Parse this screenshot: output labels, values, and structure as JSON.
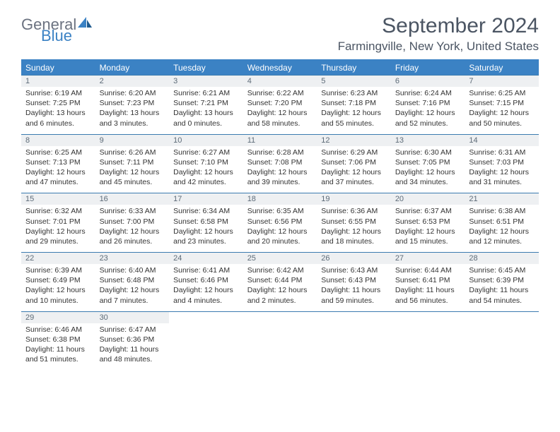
{
  "logo": {
    "word1": "General",
    "word2": "Blue"
  },
  "title": "September 2024",
  "location": "Farmingville, New York, United States",
  "colors": {
    "accent": "#3b82c4",
    "header_text": "#ffffff",
    "num_bg": "#eef0f2",
    "num_text": "#5d6b78",
    "body_text": "#333333",
    "title_text": "#4b5563",
    "logo_grey": "#6b7280"
  },
  "day_names": [
    "Sunday",
    "Monday",
    "Tuesday",
    "Wednesday",
    "Thursday",
    "Friday",
    "Saturday"
  ],
  "weeks": [
    [
      {
        "n": "1",
        "sr": "6:19 AM",
        "ss": "7:25 PM",
        "dl": "13 hours and 6 minutes."
      },
      {
        "n": "2",
        "sr": "6:20 AM",
        "ss": "7:23 PM",
        "dl": "13 hours and 3 minutes."
      },
      {
        "n": "3",
        "sr": "6:21 AM",
        "ss": "7:21 PM",
        "dl": "13 hours and 0 minutes."
      },
      {
        "n": "4",
        "sr": "6:22 AM",
        "ss": "7:20 PM",
        "dl": "12 hours and 58 minutes."
      },
      {
        "n": "5",
        "sr": "6:23 AM",
        "ss": "7:18 PM",
        "dl": "12 hours and 55 minutes."
      },
      {
        "n": "6",
        "sr": "6:24 AM",
        "ss": "7:16 PM",
        "dl": "12 hours and 52 minutes."
      },
      {
        "n": "7",
        "sr": "6:25 AM",
        "ss": "7:15 PM",
        "dl": "12 hours and 50 minutes."
      }
    ],
    [
      {
        "n": "8",
        "sr": "6:25 AM",
        "ss": "7:13 PM",
        "dl": "12 hours and 47 minutes."
      },
      {
        "n": "9",
        "sr": "6:26 AM",
        "ss": "7:11 PM",
        "dl": "12 hours and 45 minutes."
      },
      {
        "n": "10",
        "sr": "6:27 AM",
        "ss": "7:10 PM",
        "dl": "12 hours and 42 minutes."
      },
      {
        "n": "11",
        "sr": "6:28 AM",
        "ss": "7:08 PM",
        "dl": "12 hours and 39 minutes."
      },
      {
        "n": "12",
        "sr": "6:29 AM",
        "ss": "7:06 PM",
        "dl": "12 hours and 37 minutes."
      },
      {
        "n": "13",
        "sr": "6:30 AM",
        "ss": "7:05 PM",
        "dl": "12 hours and 34 minutes."
      },
      {
        "n": "14",
        "sr": "6:31 AM",
        "ss": "7:03 PM",
        "dl": "12 hours and 31 minutes."
      }
    ],
    [
      {
        "n": "15",
        "sr": "6:32 AM",
        "ss": "7:01 PM",
        "dl": "12 hours and 29 minutes."
      },
      {
        "n": "16",
        "sr": "6:33 AM",
        "ss": "7:00 PM",
        "dl": "12 hours and 26 minutes."
      },
      {
        "n": "17",
        "sr": "6:34 AM",
        "ss": "6:58 PM",
        "dl": "12 hours and 23 minutes."
      },
      {
        "n": "18",
        "sr": "6:35 AM",
        "ss": "6:56 PM",
        "dl": "12 hours and 20 minutes."
      },
      {
        "n": "19",
        "sr": "6:36 AM",
        "ss": "6:55 PM",
        "dl": "12 hours and 18 minutes."
      },
      {
        "n": "20",
        "sr": "6:37 AM",
        "ss": "6:53 PM",
        "dl": "12 hours and 15 minutes."
      },
      {
        "n": "21",
        "sr": "6:38 AM",
        "ss": "6:51 PM",
        "dl": "12 hours and 12 minutes."
      }
    ],
    [
      {
        "n": "22",
        "sr": "6:39 AM",
        "ss": "6:49 PM",
        "dl": "12 hours and 10 minutes."
      },
      {
        "n": "23",
        "sr": "6:40 AM",
        "ss": "6:48 PM",
        "dl": "12 hours and 7 minutes."
      },
      {
        "n": "24",
        "sr": "6:41 AM",
        "ss": "6:46 PM",
        "dl": "12 hours and 4 minutes."
      },
      {
        "n": "25",
        "sr": "6:42 AM",
        "ss": "6:44 PM",
        "dl": "12 hours and 2 minutes."
      },
      {
        "n": "26",
        "sr": "6:43 AM",
        "ss": "6:43 PM",
        "dl": "11 hours and 59 minutes."
      },
      {
        "n": "27",
        "sr": "6:44 AM",
        "ss": "6:41 PM",
        "dl": "11 hours and 56 minutes."
      },
      {
        "n": "28",
        "sr": "6:45 AM",
        "ss": "6:39 PM",
        "dl": "11 hours and 54 minutes."
      }
    ],
    [
      {
        "n": "29",
        "sr": "6:46 AM",
        "ss": "6:38 PM",
        "dl": "11 hours and 51 minutes."
      },
      {
        "n": "30",
        "sr": "6:47 AM",
        "ss": "6:36 PM",
        "dl": "11 hours and 48 minutes."
      },
      null,
      null,
      null,
      null,
      null
    ]
  ],
  "labels": {
    "sunrise": "Sunrise: ",
    "sunset": "Sunset: ",
    "daylight": "Daylight: "
  }
}
